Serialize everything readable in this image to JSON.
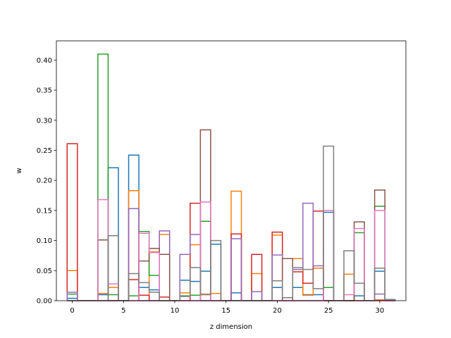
{
  "chart_data": {
    "type": "step-histogram",
    "title": "",
    "xlabel": "z dimension",
    "ylabel": "w",
    "xlim": [
      -1.55,
      32.55
    ],
    "ylim": [
      0,
      0.432
    ],
    "xticks": [
      0,
      5,
      10,
      15,
      20,
      25,
      30
    ],
    "yticks": [
      0.0,
      0.05,
      0.1,
      0.15,
      0.2,
      0.25,
      0.3,
      0.35,
      0.4
    ],
    "ytick_labels": [
      "0.00",
      "0.05",
      "0.10",
      "0.15",
      "0.20",
      "0.25",
      "0.30",
      "0.35",
      "0.40"
    ],
    "grid": false,
    "series": [
      {
        "color": "#1f77b4",
        "values": [
          0.004,
          0,
          0,
          0.01,
          0.221,
          0,
          0.242,
          0.022,
          0.018,
          0,
          0,
          0.034,
          0.032,
          0.049,
          0.094,
          0,
          0.013,
          0,
          0,
          0,
          0.022,
          0,
          0.022,
          0.01,
          0.01,
          0.147,
          0,
          0,
          0.008,
          0,
          0.049,
          0
        ]
      },
      {
        "color": "#ff7f0e",
        "values": [
          0.05,
          0,
          0,
          0.012,
          0.022,
          0,
          0.183,
          0,
          0.081,
          0.11,
          0,
          0.013,
          0.093,
          0.011,
          0.012,
          0,
          0.182,
          0,
          0.045,
          0,
          0.109,
          0,
          0.07,
          0.009,
          0.054,
          0,
          0,
          0.044,
          0,
          0,
          0,
          0
        ]
      },
      {
        "color": "#2ca02c",
        "values": [
          0.011,
          0,
          0,
          0.41,
          0.01,
          0,
          0.008,
          0.115,
          0.042,
          0,
          0,
          0.008,
          0.009,
          0.132,
          0,
          0,
          0,
          0,
          0,
          0,
          0,
          0,
          0,
          0,
          0,
          0.022,
          0,
          0,
          0.113,
          0,
          0.157,
          0
        ]
      },
      {
        "color": "#d62728",
        "values": [
          0.261,
          0,
          0,
          0,
          0,
          0,
          0.035,
          0.009,
          0,
          0.006,
          0,
          0,
          0.162,
          0,
          0,
          0,
          0.111,
          0,
          0.077,
          0,
          0.114,
          0,
          0.048,
          0.029,
          0.149,
          0,
          0,
          0,
          0,
          0,
          0.001,
          0
        ]
      },
      {
        "color": "#9467bd",
        "values": [
          0.014,
          0,
          0,
          0,
          0,
          0,
          0.153,
          0,
          0,
          0.116,
          0,
          0.077,
          0.11,
          0,
          0,
          0,
          0.103,
          0,
          0.015,
          0,
          0.076,
          0,
          0.052,
          0.162,
          0.058,
          0,
          0,
          0,
          0,
          0,
          0.011,
          0
        ]
      },
      {
        "color": "#8c564b",
        "values": [
          0,
          0,
          0,
          0.101,
          0,
          0,
          0,
          0.066,
          0.087,
          0.077,
          0,
          0,
          0,
          0.284,
          0,
          0,
          0,
          0,
          0,
          0,
          0,
          0.07,
          0,
          0,
          0,
          0,
          0,
          0,
          0.131,
          0,
          0.184,
          0
        ]
      },
      {
        "color": "#e377c2",
        "values": [
          0,
          0,
          0,
          0.168,
          0.028,
          0,
          0,
          0.112,
          0.08,
          0,
          0,
          0,
          0,
          0.164,
          0,
          0,
          0,
          0,
          0,
          0,
          0,
          0,
          0,
          0,
          0,
          0.15,
          0,
          0.01,
          0.12,
          0,
          0.15,
          0
        ]
      },
      {
        "color": "#7f7f7f",
        "values": [
          0,
          0,
          0,
          0,
          0.108,
          0,
          0.045,
          0.03,
          0.014,
          0,
          0,
          0.007,
          0.055,
          0.01,
          0.1,
          0,
          0,
          0,
          0,
          0,
          0.033,
          0.005,
          0.055,
          0.052,
          0.02,
          0.257,
          0,
          0.083,
          0.029,
          0,
          0.054,
          0.002
        ]
      }
    ]
  }
}
